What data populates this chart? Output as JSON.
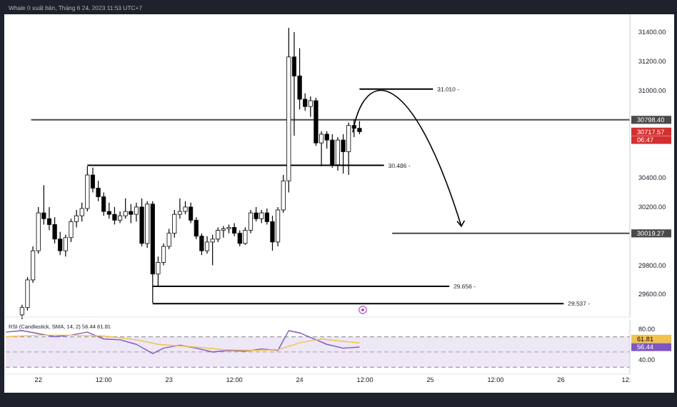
{
  "chart_data": [
    {
      "type": "candlestick",
      "title": "Whale 0 xuất bản, Tháng 6 24, 2023 11:53 UTC+7",
      "tick_labels": "y",
      "xlim": [
        "2023-06-21T18:00",
        "2023-06-26T12:40"
      ],
      "ylim": [
        29445,
        31523
      ],
      "yticks": [
        {
          "value": 29600,
          "label": "29600.00"
        },
        {
          "value": 29800,
          "label": "29800.00"
        },
        {
          "value": 30200,
          "label": "30200.00"
        },
        {
          "value": 30400,
          "label": "30400.00"
        },
        {
          "value": 31000,
          "label": "31000.00"
        },
        {
          "value": 31200,
          "label": "31200.00"
        },
        {
          "value": 31400,
          "label": "31400.00"
        }
      ],
      "x": [
        "2023-06-21T21:00",
        "2023-06-21T22:00",
        "2023-06-21T23:00",
        "2023-06-22T00:00",
        "2023-06-22T01:00",
        "2023-06-22T02:00",
        "2023-06-22T03:00",
        "2023-06-22T04:00",
        "2023-06-22T05:00",
        "2023-06-22T06:00",
        "2023-06-22T07:00",
        "2023-06-22T08:00",
        "2023-06-22T09:00",
        "2023-06-22T10:00",
        "2023-06-22T11:00",
        "2023-06-22T12:00",
        "2023-06-22T13:00",
        "2023-06-22T14:00",
        "2023-06-22T15:00",
        "2023-06-22T16:00",
        "2023-06-22T17:00",
        "2023-06-22T18:00",
        "2023-06-22T19:00",
        "2023-06-22T20:00",
        "2023-06-22T21:00",
        "2023-06-22T22:00",
        "2023-06-22T23:00",
        "2023-06-23T00:00",
        "2023-06-23T01:00",
        "2023-06-23T02:00",
        "2023-06-23T03:00",
        "2023-06-23T04:00",
        "2023-06-23T05:00",
        "2023-06-23T06:00",
        "2023-06-23T07:00",
        "2023-06-23T08:00",
        "2023-06-23T09:00",
        "2023-06-23T10:00",
        "2023-06-23T11:00",
        "2023-06-23T12:00",
        "2023-06-23T13:00",
        "2023-06-23T14:00",
        "2023-06-23T15:00",
        "2023-06-23T16:00",
        "2023-06-23T17:00",
        "2023-06-23T18:00",
        "2023-06-23T19:00",
        "2023-06-23T20:00",
        "2023-06-23T21:00",
        "2023-06-23T22:00",
        "2023-06-23T23:00",
        "2023-06-24T00:00",
        "2023-06-24T01:00",
        "2023-06-24T02:00",
        "2023-06-24T03:00",
        "2023-06-24T04:00",
        "2023-06-24T05:00",
        "2023-06-24T06:00",
        "2023-06-24T07:00",
        "2023-06-24T08:00",
        "2023-06-24T09:00",
        "2023-06-24T10:00",
        "2023-06-24T11:00"
      ],
      "ohlc": [
        [
          29460,
          29530,
          29430,
          29510
        ],
        [
          29510,
          29720,
          29490,
          29700
        ],
        [
          29700,
          29930,
          29680,
          29900
        ],
        [
          29900,
          30200,
          29880,
          30160
        ],
        [
          30160,
          30350,
          30080,
          30120
        ],
        [
          30120,
          30200,
          30040,
          30080
        ],
        [
          30080,
          30130,
          29950,
          29980
        ],
        [
          29980,
          30030,
          29870,
          29900
        ],
        [
          29900,
          30010,
          29860,
          29990
        ],
        [
          29990,
          30120,
          29960,
          30100
        ],
        [
          30100,
          30180,
          30060,
          30140
        ],
        [
          30140,
          30230,
          30100,
          30190
        ],
        [
          30190,
          30480,
          30170,
          30420
        ],
        [
          30420,
          30470,
          30300,
          30330
        ],
        [
          30330,
          30380,
          30240,
          30270
        ],
        [
          30270,
          30300,
          30140,
          30170
        ],
        [
          30170,
          30230,
          30120,
          30150
        ],
        [
          30150,
          30200,
          30080,
          30110
        ],
        [
          30110,
          30170,
          30090,
          30140
        ],
        [
          30140,
          30260,
          30120,
          30170
        ],
        [
          30170,
          30220,
          30090,
          30150
        ],
        [
          30150,
          30230,
          30100,
          30200
        ],
        [
          30200,
          30260,
          29930,
          29950
        ],
        [
          29950,
          30240,
          29920,
          30220
        ],
        [
          30220,
          30240,
          29540,
          29740
        ],
        [
          29740,
          29860,
          29660,
          29820
        ],
        [
          29820,
          29950,
          29800,
          29930
        ],
        [
          29930,
          30050,
          29910,
          30020
        ],
        [
          30020,
          30180,
          29990,
          30150
        ],
        [
          30150,
          30260,
          30120,
          30170
        ],
        [
          30170,
          30240,
          30150,
          30200
        ],
        [
          30200,
          30230,
          30090,
          30110
        ],
        [
          30110,
          30130,
          29980,
          30000
        ],
        [
          30000,
          30020,
          29870,
          29900
        ],
        [
          29900,
          30000,
          29880,
          29960
        ],
        [
          29960,
          30010,
          29800,
          29980
        ],
        [
          29980,
          30060,
          29960,
          30040
        ],
        [
          30040,
          30070,
          29990,
          30050
        ],
        [
          30050,
          30080,
          30020,
          30060
        ],
        [
          30060,
          30090,
          30000,
          30020
        ],
        [
          30020,
          30040,
          29930,
          29950
        ],
        [
          29950,
          30060,
          29940,
          30040
        ],
        [
          30040,
          30180,
          30020,
          30160
        ],
        [
          30160,
          30200,
          30100,
          30120
        ],
        [
          30120,
          30180,
          30090,
          30160
        ],
        [
          30160,
          30190,
          30080,
          30100
        ],
        [
          30100,
          30140,
          29900,
          29960
        ],
        [
          29960,
          30200,
          29930,
          30180
        ],
        [
          30180,
          30420,
          30160,
          30380
        ],
        [
          30380,
          31430,
          30300,
          31230
        ],
        [
          31230,
          31400,
          30690,
          31100
        ],
        [
          31100,
          31290,
          30870,
          30940
        ],
        [
          30940,
          30980,
          30860,
          30890
        ],
        [
          30890,
          30960,
          30820,
          30930
        ],
        [
          30930,
          30950,
          30620,
          30640
        ],
        [
          30640,
          30720,
          30480,
          30700
        ],
        [
          30700,
          30720,
          30600,
          30660
        ],
        [
          30660,
          30700,
          30470,
          30490
        ],
        [
          30490,
          30680,
          30450,
          30660
        ],
        [
          30660,
          30700,
          30430,
          30580
        ],
        [
          30580,
          30780,
          30420,
          30760
        ],
        [
          30760,
          30800,
          30680,
          30740
        ],
        [
          30740,
          30790,
          30700,
          30717.57
        ]
      ],
      "colors": [
        "#ffffff",
        "#ffffff",
        "#ffffff",
        "#ffffff",
        "#000000",
        "#000000",
        "#000000",
        "#000000",
        "#ffffff",
        "#ffffff",
        "#ffffff",
        "#ffffff",
        "#ffffff",
        "#000000",
        "#000000",
        "#000000",
        "#000000",
        "#000000",
        "#ffffff",
        "#ffffff",
        "#000000",
        "#ffffff",
        "#000000",
        "#ffffff",
        "#000000",
        "#ffffff",
        "#ffffff",
        "#ffffff",
        "#ffffff",
        "#ffffff",
        "#ffffff",
        "#000000",
        "#000000",
        "#000000",
        "#ffffff",
        "#ffffff",
        "#ffffff",
        "#ffffff",
        "#ffffff",
        "#000000",
        "#000000",
        "#ffffff",
        "#ffffff",
        "#000000",
        "#ffffff",
        "#000000",
        "#000000",
        "#ffffff",
        "#ffffff",
        "#ffffff",
        "#000000",
        "#000000",
        "#000000",
        "#ffffff",
        "#000000",
        "#ffffff",
        "#000000",
        "#000000",
        "#ffffff",
        "#000000",
        "#ffffff",
        "#000000",
        "#000000"
      ],
      "series": [
        {
          "type": "line",
          "color": "#4a4a4a",
          "x": [
            "2023-06-21T22:40",
            "2023-06-26T12:40"
          ],
          "values": [
            30798.4,
            30798.4
          ]
        },
        {
          "type": "line",
          "color": "#000000",
          "x": [
            "2023-06-24T11:00",
            "2023-06-25T00:30"
          ],
          "values": [
            31010,
            31010
          ]
        },
        {
          "type": "line",
          "color": "#000000",
          "x": [
            "2023-06-22T09:00",
            "2023-06-24T15:30"
          ],
          "values": [
            30486,
            30486
          ]
        },
        {
          "type": "line",
          "color": "#000000",
          "x": [
            "2023-06-22T21:00",
            "2023-06-25T03:30"
          ],
          "values": [
            29656,
            29656
          ]
        },
        {
          "type": "line",
          "color": "#000000",
          "x": [
            "2023-06-22T21:00",
            "2023-06-26T00:30"
          ],
          "values": [
            29537,
            29537
          ]
        },
        {
          "type": "line",
          "color": "#4a4a4a",
          "x": [
            "2023-06-24T17:00",
            "2023-06-26T12:40"
          ],
          "values": [
            30019.27,
            30019.27
          ]
        }
      ],
      "annotations": [
        {
          "text": "31.010 -",
          "x": "2023-06-25T00:30",
          "y": 31010
        },
        {
          "text": "30.486 -",
          "x": "2023-06-24T15:30",
          "y": 30486
        },
        {
          "text": "29.656 -",
          "x": "2023-06-25T03:30",
          "y": 29656
        },
        {
          "text": "29.537 -",
          "x": "2023-06-26T00:30",
          "y": 29537
        },
        {
          "text": "30798.40",
          "x": "2023-06-26T12:40",
          "y": 30798.4
        },
        "30717.57",
        "06:47",
        {
          "text": "30019.27",
          "x": "2023-06-26T12:40",
          "y": 30019.27
        }
      ]
    },
    {
      "type": "line",
      "title": "RSI (Candlestick, SMA, 14, 2) 56.44 61.81",
      "xlim": [
        "2023-06-21T18:00",
        "2023-06-26T12:40"
      ],
      "xticks": [
        {
          "value": "2023-06-22T00:00",
          "label": "22"
        },
        {
          "value": "2023-06-22T12:00",
          "label": "12:00"
        },
        {
          "value": "2023-06-23T00:00",
          "label": "23"
        },
        {
          "value": "2023-06-23T12:00",
          "label": "12:00"
        },
        {
          "value": "2023-06-24T00:00",
          "label": "24"
        },
        {
          "value": "2023-06-24T12:00",
          "label": "12:00"
        },
        {
          "value": "2023-06-25T00:00",
          "label": "25"
        },
        {
          "value": "2023-06-25T12:00",
          "label": "12:00"
        },
        {
          "value": "2023-06-26T00:00",
          "label": "26"
        },
        {
          "value": "2023-06-26T12:00",
          "label": "12:"
        }
      ],
      "ylim": [
        21,
        92
      ],
      "yticks": [
        {
          "value": 80,
          "label": "80.00"
        },
        {
          "value": 40,
          "label": "40.00"
        }
      ],
      "bands": [
        {
          "axis": "y",
          "from": 30,
          "to": 70,
          "color": "#ede7f6"
        }
      ],
      "ref_lines": [
        {
          "axis": "y",
          "value": 70,
          "color": "#9e9e9e",
          "line_style": "dashed"
        },
        {
          "axis": "y",
          "value": 50,
          "color": "#b0b0b0",
          "line_style": "dashed"
        },
        {
          "axis": "y",
          "value": 30,
          "color": "#9e9e9e",
          "line_style": "dashed"
        }
      ],
      "series": [
        {
          "color": "#7e57c2",
          "x": [
            "2023-06-21T18:00",
            "2023-06-21T21:00",
            "2023-06-22T00:00",
            "2023-06-22T03:00",
            "2023-06-22T06:00",
            "2023-06-22T09:00",
            "2023-06-22T12:00",
            "2023-06-22T15:00",
            "2023-06-22T18:00",
            "2023-06-22T20:00",
            "2023-06-22T21:00",
            "2023-06-22T23:00",
            "2023-06-23T02:00",
            "2023-06-23T05:00",
            "2023-06-23T08:00",
            "2023-06-23T11:00",
            "2023-06-23T14:00",
            "2023-06-23T17:00",
            "2023-06-23T20:00",
            "2023-06-23T22:00",
            "2023-06-24T00:00",
            "2023-06-24T02:00",
            "2023-06-24T05:00",
            "2023-06-24T08:00",
            "2023-06-24T11:00"
          ],
          "values": [
            76,
            78,
            74,
            70,
            72,
            76,
            67,
            66,
            60,
            52,
            48,
            55,
            59,
            55,
            50,
            52,
            51,
            54,
            52,
            78,
            75,
            69,
            60,
            55,
            56.44
          ]
        },
        {
          "color": "#f2c14e",
          "x": [
            "2023-06-21T18:00",
            "2023-06-22T00:00",
            "2023-06-22T06:00",
            "2023-06-22T12:00",
            "2023-06-22T18:00",
            "2023-06-22T22:00",
            "2023-06-23T04:00",
            "2023-06-23T10:00",
            "2023-06-23T16:00",
            "2023-06-23T20:00",
            "2023-06-24T00:00",
            "2023-06-24T04:00",
            "2023-06-24T08:00",
            "2023-06-24T11:00"
          ],
          "values": [
            70,
            72,
            72,
            71,
            66,
            60,
            57,
            53,
            52,
            53,
            62,
            67,
            64,
            61.81
          ]
        }
      ],
      "annotations": [
        "56.44",
        "61.81"
      ]
    }
  ]
}
